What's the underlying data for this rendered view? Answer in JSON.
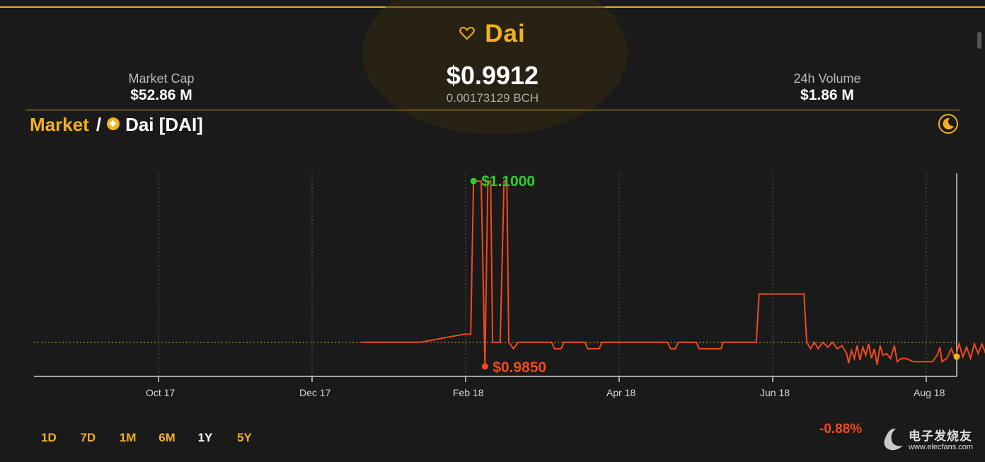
{
  "coin": {
    "name": "Dai",
    "price": "$0.9912",
    "price_bch": "0.00173129 BCH"
  },
  "stats": {
    "market_cap_label": "Market Cap",
    "market_cap_value": "$52.86 M",
    "volume_label": "24h Volume",
    "volume_value": "$1.86 M"
  },
  "breadcrumb": {
    "market": "Market",
    "separator": "/",
    "coin": "Dai [DAI]"
  },
  "icons": {
    "favorite": "heart-icon",
    "coin": "dai-icon",
    "theme": "moon-icon"
  },
  "colors": {
    "accent": "#f2b21c",
    "line": "#f04a1e",
    "high": "#2fcf2f",
    "low": "#f04a1e"
  },
  "time_ranges": [
    "1D",
    "7D",
    "1M",
    "6M",
    "1Y",
    "5Y"
  ],
  "active_range": "1Y",
  "change": "-0.88%",
  "watermark": {
    "text_cn": "电子发烧友",
    "url": "www.elecfans.com"
  },
  "chart_data": {
    "type": "line",
    "x_ticks": [
      "Oct 17",
      "Dec 17",
      "Feb 18",
      "Apr 18",
      "Jun 18",
      "Aug 18"
    ],
    "high_label": "$1.1000",
    "low_label": "$0.9850",
    "reference_value": 1.0,
    "series": [
      {
        "values": [
          [
            0.0,
            1.0
          ],
          [
            0.62,
            1.0
          ],
          [
            1.08,
            1.005
          ],
          [
            1.15,
            1.005
          ],
          [
            1.18,
            1.1
          ],
          [
            1.26,
            1.1
          ],
          [
            1.3,
            0.985
          ],
          [
            1.33,
            1.1
          ],
          [
            1.36,
            1.1
          ],
          [
            1.38,
            1.0
          ],
          [
            1.46,
            1.0
          ],
          [
            1.5,
            1.1
          ],
          [
            1.53,
            1.1
          ],
          [
            1.55,
            1.0
          ],
          [
            1.6,
            0.996
          ],
          [
            1.65,
            1.0
          ],
          [
            2.0,
            1.0
          ],
          [
            2.03,
            0.996
          ],
          [
            2.1,
            0.996
          ],
          [
            2.13,
            1.0
          ],
          [
            2.35,
            1.0
          ],
          [
            2.38,
            0.996
          ],
          [
            2.5,
            0.996
          ],
          [
            2.53,
            1.0
          ],
          [
            3.22,
            1.0
          ],
          [
            3.25,
            0.996
          ],
          [
            3.3,
            0.996
          ],
          [
            3.33,
            1.0
          ],
          [
            3.52,
            1.0
          ],
          [
            3.55,
            0.996
          ],
          [
            3.78,
            0.996
          ],
          [
            3.8,
            1.0
          ],
          [
            4.15,
            1.0
          ],
          [
            4.18,
            1.03
          ],
          [
            4.65,
            1.03
          ],
          [
            4.68,
            1.0
          ],
          [
            4.72,
            0.996
          ],
          [
            4.76,
            1.0
          ],
          [
            4.8,
            0.996
          ],
          [
            4.85,
            1.0
          ],
          [
            4.9,
            0.997
          ],
          [
            4.95,
            1.0
          ],
          [
            5.0,
            0.996
          ],
          [
            5.05,
            0.998
          ],
          [
            5.1,
            0.993
          ],
          [
            5.12,
            0.987
          ],
          [
            5.15,
            0.995
          ],
          [
            5.18,
            0.99
          ],
          [
            5.21,
            0.998
          ],
          [
            5.24,
            0.989
          ],
          [
            5.27,
            0.997
          ],
          [
            5.3,
            0.992
          ],
          [
            5.33,
            0.999
          ],
          [
            5.36,
            0.99
          ],
          [
            5.39,
            0.996
          ],
          [
            5.42,
            0.986
          ],
          [
            5.45,
            0.998
          ],
          [
            5.48,
            0.992
          ],
          [
            5.52,
            0.993
          ],
          [
            5.56,
            0.99
          ],
          [
            5.6,
            0.998
          ],
          [
            5.63,
            0.988
          ],
          [
            5.67,
            0.99
          ],
          [
            5.72,
            0.99
          ],
          [
            5.8,
            0.988
          ],
          [
            5.9,
            0.988
          ],
          [
            6.0,
            0.988
          ],
          [
            6.05,
            0.992
          ],
          [
            6.08,
            0.997
          ],
          [
            6.1,
            0.988
          ],
          [
            6.15,
            0.99
          ],
          [
            6.2,
            0.996
          ],
          [
            6.24,
            0.99
          ],
          [
            6.28,
            0.999
          ],
          [
            6.32,
            0.991
          ],
          [
            6.36,
            0.997
          ],
          [
            6.4,
            0.99
          ],
          [
            6.44,
            0.999
          ],
          [
            6.48,
            0.993
          ],
          [
            6.52,
            0.999
          ],
          [
            6.56,
            0.993
          ],
          [
            6.6,
            0.999
          ],
          [
            6.64,
            0.991
          ],
          [
            6.68,
            0.998
          ],
          [
            6.72,
            0.993
          ],
          [
            6.76,
            0.997
          ],
          [
            6.8,
            0.992
          ],
          [
            6.85,
            0.992
          ]
        ]
      }
    ]
  }
}
